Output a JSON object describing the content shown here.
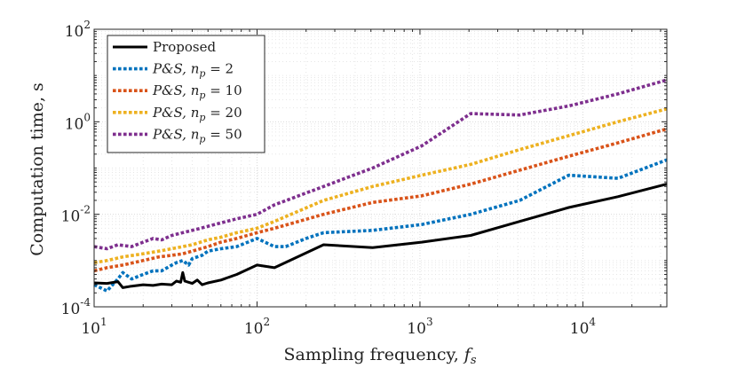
{
  "chart_data": {
    "type": "line",
    "scale": {
      "x": "log",
      "y": "log"
    },
    "xlabel": "Sampling frequency, f_s",
    "xlabel_parts": {
      "text": "Sampling frequency, ",
      "var": "f",
      "sub": "s"
    },
    "ylabel": "Computation time, s",
    "xlim": [
      10,
      32768
    ],
    "ylim": [
      0.0001,
      100
    ],
    "x_ticks": [
      {
        "value": 10,
        "base": "10",
        "exp": "1"
      },
      {
        "value": 100,
        "base": "10",
        "exp": "2"
      },
      {
        "value": 1000,
        "base": "10",
        "exp": "3"
      },
      {
        "value": 10000,
        "base": "10",
        "exp": "4"
      }
    ],
    "y_ticks": [
      {
        "value": 0.0001,
        "base": "10",
        "exp": "-4"
      },
      {
        "value": 0.01,
        "base": "10",
        "exp": "-2"
      },
      {
        "value": 1,
        "base": "10",
        "exp": "0"
      },
      {
        "value": 100,
        "base": "10",
        "exp": "2"
      }
    ],
    "grid": true,
    "legend_position": "top-left",
    "series": [
      {
        "name": "Proposed",
        "legend": "Proposed",
        "color": "#000000",
        "style": "solid",
        "x": [
          10,
          12,
          14,
          15,
          17,
          20,
          23,
          26,
          30,
          32,
          34,
          35,
          36,
          38,
          40,
          43,
          46,
          50,
          60,
          75,
          100,
          128,
          256,
          512,
          1024,
          2048,
          4096,
          8192,
          16384,
          32768
        ],
        "y": [
          0.00033,
          0.00032,
          0.00035,
          0.00026,
          0.00028,
          0.0003,
          0.00029,
          0.00031,
          0.0003,
          0.00036,
          0.00034,
          0.00055,
          0.00036,
          0.00034,
          0.00032,
          0.00038,
          0.0003,
          0.00033,
          0.00038,
          0.0005,
          0.0008,
          0.0007,
          0.0022,
          0.0019,
          0.0025,
          0.0035,
          0.007,
          0.014,
          0.024,
          0.045
        ]
      },
      {
        "name": "P&S, n_p = 2",
        "legend_parts": {
          "ps": "P&S",
          "n": "n",
          "sub": "p",
          "eq": " = 2"
        },
        "color": "#0072bd",
        "style": "dotted",
        "x": [
          10,
          12,
          14,
          15,
          17,
          20,
          23,
          26,
          30,
          32,
          35,
          38,
          40,
          43,
          46,
          50,
          60,
          75,
          100,
          128,
          150,
          200,
          256,
          512,
          1024,
          2048,
          4096,
          8192,
          16384,
          32768
        ],
        "y": [
          0.0003,
          0.00022,
          0.0004,
          0.00055,
          0.0004,
          0.0005,
          0.0006,
          0.0006,
          0.0008,
          0.0009,
          0.001,
          0.0008,
          0.0011,
          0.0012,
          0.0013,
          0.0016,
          0.0018,
          0.002,
          0.003,
          0.002,
          0.002,
          0.003,
          0.004,
          0.0045,
          0.006,
          0.01,
          0.02,
          0.07,
          0.06,
          0.15
        ]
      },
      {
        "name": "P&S, n_p = 10",
        "legend_parts": {
          "ps": "P&S",
          "n": "n",
          "sub": "p",
          "eq": " = 10"
        },
        "color": "#d95319",
        "style": "dotted",
        "x": [
          10,
          12,
          15,
          20,
          25,
          30,
          35,
          40,
          45,
          50,
          60,
          75,
          100,
          128,
          256,
          512,
          1024,
          2048,
          4096,
          8192,
          16384,
          32768
        ],
        "y": [
          0.0006,
          0.0007,
          0.0008,
          0.001,
          0.0012,
          0.0013,
          0.0014,
          0.0016,
          0.0018,
          0.002,
          0.0025,
          0.003,
          0.004,
          0.005,
          0.01,
          0.018,
          0.025,
          0.045,
          0.09,
          0.18,
          0.35,
          0.7
        ]
      },
      {
        "name": "P&S, n_p = 20",
        "legend_parts": {
          "ps": "P&S",
          "n": "n",
          "sub": "p",
          "eq": " = 20"
        },
        "color": "#edb120",
        "style": "dotted",
        "x": [
          10,
          12,
          15,
          20,
          25,
          30,
          35,
          40,
          45,
          50,
          60,
          75,
          100,
          128,
          256,
          512,
          1024,
          2048,
          4096,
          8192,
          16384,
          32768
        ],
        "y": [
          0.0009,
          0.001,
          0.0012,
          0.0014,
          0.0016,
          0.0018,
          0.002,
          0.0022,
          0.0025,
          0.0028,
          0.0032,
          0.004,
          0.005,
          0.007,
          0.02,
          0.04,
          0.07,
          0.12,
          0.25,
          0.5,
          1.0,
          1.9
        ]
      },
      {
        "name": "P&S, n_p = 50",
        "legend_parts": {
          "ps": "P&S",
          "n": "n",
          "sub": "p",
          "eq": " = 50"
        },
        "color": "#7e2f8e",
        "style": "dotted",
        "x": [
          10,
          12,
          14,
          17,
          20,
          23,
          26,
          30,
          35,
          40,
          45,
          50,
          60,
          75,
          100,
          128,
          256,
          512,
          1024,
          2048,
          4096,
          8192,
          16384,
          32768
        ],
        "y": [
          0.002,
          0.0018,
          0.0022,
          0.002,
          0.0025,
          0.003,
          0.0028,
          0.0035,
          0.004,
          0.0045,
          0.005,
          0.0055,
          0.0065,
          0.008,
          0.01,
          0.016,
          0.04,
          0.1,
          0.3,
          1.5,
          1.4,
          2.2,
          4.0,
          8.0
        ]
      }
    ]
  }
}
